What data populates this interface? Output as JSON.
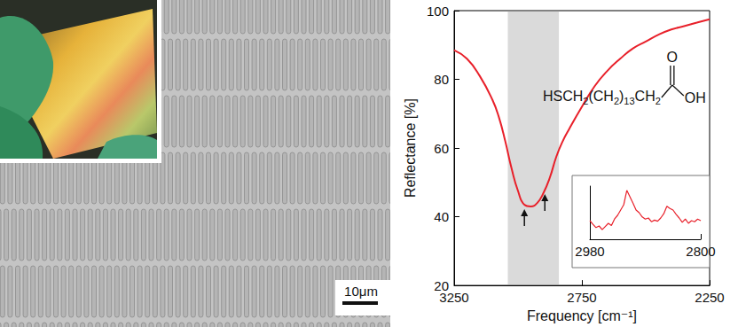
{
  "sem_panel": {
    "scale_bar_label": "10μm"
  },
  "chart_data": [
    {
      "type": "line",
      "x": [
        3250,
        3200,
        3150,
        3100,
        3075,
        3050,
        3025,
        3000,
        2975,
        2950,
        2925,
        2900,
        2875,
        2850,
        2825,
        2800,
        2750,
        2700,
        2650,
        2600,
        2550,
        2500,
        2450,
        2400,
        2350,
        2300,
        2250
      ],
      "values": [
        88.5,
        86,
        81,
        74,
        69,
        62,
        54,
        47.5,
        43.5,
        43,
        44,
        47,
        51.5,
        57.5,
        62,
        65.5,
        72,
        78,
        82.5,
        86,
        89,
        91,
        93,
        94.5,
        95.5,
        96.5,
        97.5
      ],
      "color": "#e8202a",
      "xlim": [
        3250,
        2250
      ],
      "xticks": [
        3250,
        2750,
        2250
      ],
      "ylim": [
        20,
        100
      ],
      "yticks": [
        20,
        40,
        60,
        80,
        100
      ],
      "x_label": "Frequency [cm⁻¹]",
      "y_label": "Reflectance [%]",
      "shaded_range": [
        3040,
        2840
      ],
      "arrows": [
        2975,
        2895
      ],
      "annotations": {
        "formula": "HSCH2(CH2)13CH2",
        "carbonyl": "O",
        "hydroxyl": "OH"
      },
      "grid": false
    },
    {
      "type": "line",
      "x": [
        2980,
        2975,
        2970,
        2965,
        2960,
        2955,
        2950,
        2945,
        2940,
        2935,
        2930,
        2925,
        2920,
        2915,
        2910,
        2905,
        2900,
        2895,
        2890,
        2885,
        2880,
        2875,
        2870,
        2865,
        2860,
        2855,
        2850,
        2845,
        2840,
        2835,
        2830,
        2825,
        2820,
        2815,
        2810,
        2805,
        2800
      ],
      "values": [
        0.35,
        0.28,
        0.22,
        0.25,
        0.18,
        0.24,
        0.3,
        0.26,
        0.38,
        0.45,
        0.55,
        0.65,
        0.92,
        0.8,
        0.68,
        0.55,
        0.5,
        0.42,
        0.38,
        0.4,
        0.33,
        0.36,
        0.34,
        0.4,
        0.48,
        0.62,
        0.58,
        0.55,
        0.47,
        0.4,
        0.32,
        0.38,
        0.3,
        0.35,
        0.33,
        0.38,
        0.35
      ],
      "color": "#e8202a",
      "xlim": [
        2980,
        2800
      ],
      "xticks": [
        2980,
        2800
      ],
      "ylim": [
        0,
        1
      ],
      "tick_labels": "x",
      "grid": false
    }
  ]
}
